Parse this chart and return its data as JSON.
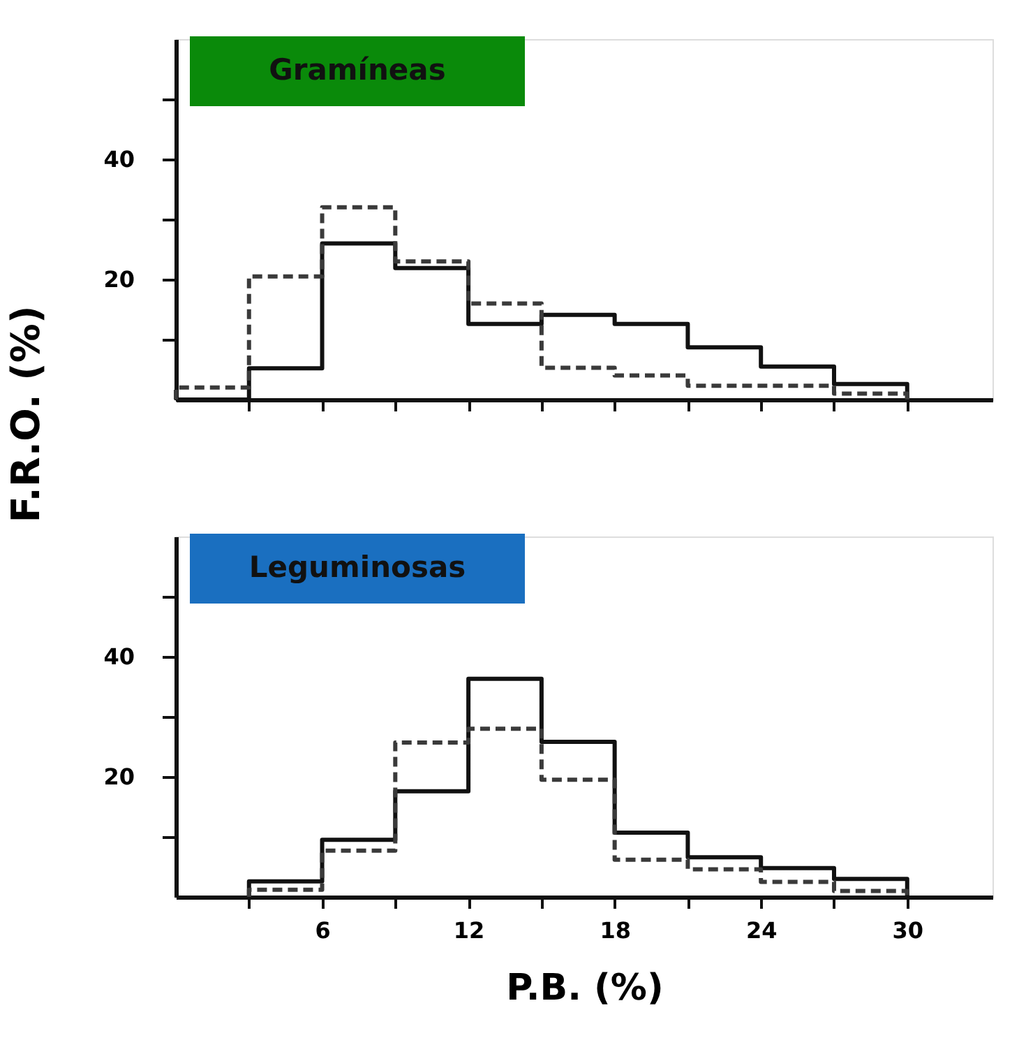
{
  "chart_data": [
    {
      "type": "histogram",
      "bins": [
        0,
        3,
        6,
        9,
        12,
        15,
        18,
        21,
        24,
        27,
        30
      ],
      "series": [
        {
          "color": "#111111",
          "line_style": "solid",
          "values": [
            0,
            5.2,
            26,
            21.9,
            12.6,
            14.1,
            12.6,
            8.7,
            5.5,
            2.6
          ]
        },
        {
          "color": "#3a3a3a",
          "line_style": "dashed",
          "values": [
            2,
            20.5,
            32,
            23,
            16,
            5.3,
            4,
            2.3,
            2.3,
            1
          ]
        }
      ],
      "xlim": [
        0,
        33.5
      ],
      "ylim": [
        0,
        60
      ],
      "xticks": [
        {
          "value": 3,
          "label": null
        },
        {
          "value": 6,
          "label": null
        },
        {
          "value": 9,
          "label": null
        },
        {
          "value": 12,
          "label": null
        },
        {
          "value": 15,
          "label": null
        },
        {
          "value": 18,
          "label": null
        },
        {
          "value": 21,
          "label": null
        },
        {
          "value": 24,
          "label": null
        },
        {
          "value": 27,
          "label": null
        },
        {
          "value": 30,
          "label": null
        }
      ],
      "yticks": [
        {
          "value": 10,
          "label": null
        },
        20,
        {
          "value": 30,
          "label": null
        },
        40,
        {
          "value": 50,
          "label": null
        }
      ],
      "tick_labels": "y",
      "ylabel": "F.R.O. (%)",
      "annotations": [
        "Gramíneas"
      ],
      "grid": false,
      "legend": false,
      "marker": "none"
    },
    {
      "type": "histogram",
      "bins": [
        3,
        6,
        9,
        12,
        15,
        18,
        21,
        24,
        27,
        30
      ],
      "series": [
        {
          "color": "#111111",
          "line_style": "solid",
          "values": [
            2.6,
            9.5,
            17.6,
            36.3,
            25.8,
            10.7,
            6.6,
            4.8,
            3
          ]
        },
        {
          "color": "#3a3a3a",
          "line_style": "dashed",
          "values": [
            1.2,
            7.7,
            25.7,
            28,
            19.5,
            6.2,
            4.6,
            2.5,
            1
          ]
        }
      ],
      "xlim": [
        0,
        33.5
      ],
      "ylim": [
        0,
        60
      ],
      "xticks": [
        {
          "value": 3,
          "label": null
        },
        6,
        {
          "value": 9,
          "label": null
        },
        12,
        {
          "value": 15,
          "label": null
        },
        18,
        {
          "value": 21,
          "label": null
        },
        24,
        {
          "value": 27,
          "label": null
        },
        30
      ],
      "yticks": [
        {
          "value": 10,
          "label": null
        },
        20,
        {
          "value": 30,
          "label": null
        },
        40,
        {
          "value": 50,
          "label": null
        }
      ],
      "xlabel": "P.B. (%)",
      "annotations": [
        "Leguminosas"
      ],
      "grid": false,
      "legend": false,
      "marker": "none"
    }
  ]
}
